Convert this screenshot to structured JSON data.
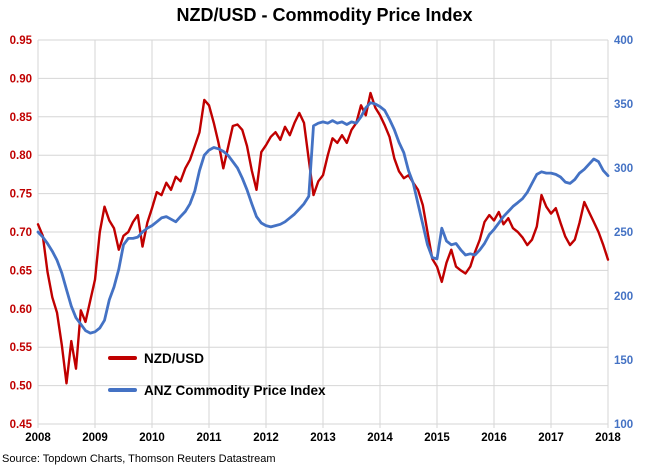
{
  "title": "NZD/USD - Commodity Price Index",
  "source": "Source: Topdown Charts, Thomson Reuters Datastream",
  "colors": {
    "red_series": "#C00000",
    "blue_series": "#4472C4",
    "grid": "#D6D6D6",
    "x_label": "#000000"
  },
  "legend": {
    "items": [
      {
        "label": "NZD/USD",
        "color": "#C00000"
      },
      {
        "label": "ANZ Commodity Price Index",
        "color": "#4472C4"
      }
    ]
  },
  "chart_data": {
    "type": "line",
    "title": "NZD/USD - Commodity Price Index",
    "frequency": "monthly",
    "x_start_year": 2008,
    "x_end_year": 2018,
    "x_tick_labels": [
      "2008",
      "2009",
      "2010",
      "2011",
      "2012",
      "2013",
      "2014",
      "2015",
      "2016",
      "2017",
      "2018"
    ],
    "grid": true,
    "legend_position": "inside-lower-left",
    "left_axis": {
      "min": 0.45,
      "max": 0.95,
      "ticks": [
        0.45,
        0.5,
        0.55,
        0.6,
        0.65,
        0.7,
        0.75,
        0.8,
        0.85,
        0.9,
        0.95
      ],
      "color": "#C00000"
    },
    "right_axis": {
      "min": 100,
      "max": 400,
      "ticks": [
        100,
        150,
        200,
        250,
        300,
        350,
        400
      ],
      "color": "#4472C4"
    },
    "series": [
      {
        "name": "NZD/USD",
        "axis": "left",
        "color": "#C00000",
        "values": [
          0.71,
          0.695,
          0.648,
          0.615,
          0.595,
          0.553,
          0.503,
          0.558,
          0.522,
          0.598,
          0.583,
          0.611,
          0.638,
          0.7,
          0.733,
          0.715,
          0.705,
          0.677,
          0.695,
          0.7,
          0.713,
          0.722,
          0.681,
          0.712,
          0.731,
          0.752,
          0.748,
          0.764,
          0.755,
          0.772,
          0.766,
          0.783,
          0.794,
          0.812,
          0.83,
          0.872,
          0.865,
          0.842,
          0.816,
          0.783,
          0.81,
          0.838,
          0.84,
          0.833,
          0.812,
          0.78,
          0.755,
          0.804,
          0.813,
          0.824,
          0.83,
          0.82,
          0.837,
          0.826,
          0.842,
          0.855,
          0.842,
          0.794,
          0.748,
          0.766,
          0.774,
          0.8,
          0.822,
          0.816,
          0.826,
          0.816,
          0.833,
          0.842,
          0.865,
          0.852,
          0.881,
          0.862,
          0.852,
          0.839,
          0.824,
          0.796,
          0.779,
          0.77,
          0.774,
          0.764,
          0.755,
          0.735,
          0.7,
          0.665,
          0.655,
          0.635,
          0.66,
          0.677,
          0.655,
          0.65,
          0.646,
          0.655,
          0.674,
          0.69,
          0.713,
          0.722,
          0.715,
          0.726,
          0.71,
          0.718,
          0.705,
          0.7,
          0.693,
          0.683,
          0.69,
          0.707,
          0.748,
          0.733,
          0.724,
          0.731,
          0.712,
          0.694,
          0.683,
          0.69,
          0.712,
          0.739,
          0.726,
          0.713,
          0.7,
          0.683,
          0.664
        ]
      },
      {
        "name": "ANZ Commodity Price Index",
        "axis": "right",
        "color": "#4472C4",
        "values": [
          250,
          246,
          241,
          235,
          228,
          218,
          205,
          192,
          183,
          178,
          173,
          171,
          172,
          175,
          181,
          197,
          207,
          221,
          240,
          245,
          245,
          246,
          250,
          253,
          255,
          258,
          261,
          262,
          260,
          258,
          262,
          266,
          272,
          282,
          298,
          310,
          314,
          316,
          315,
          313,
          310,
          305,
          300,
          292,
          283,
          272,
          262,
          257,
          255,
          254,
          255,
          256,
          258,
          261,
          264,
          268,
          272,
          278,
          333,
          335,
          336,
          335,
          337,
          335,
          336,
          334,
          336,
          335,
          340,
          347,
          351,
          350,
          348,
          345,
          338,
          330,
          320,
          312,
          298,
          288,
          272,
          256,
          240,
          230,
          229,
          253,
          243,
          240,
          241,
          236,
          232,
          233,
          232,
          236,
          241,
          248,
          252,
          257,
          262,
          266,
          270,
          273,
          276,
          281,
          288,
          295,
          297,
          296,
          296,
          295,
          293,
          289,
          288,
          291,
          296,
          299,
          303,
          307,
          305,
          298,
          294
        ]
      }
    ]
  }
}
